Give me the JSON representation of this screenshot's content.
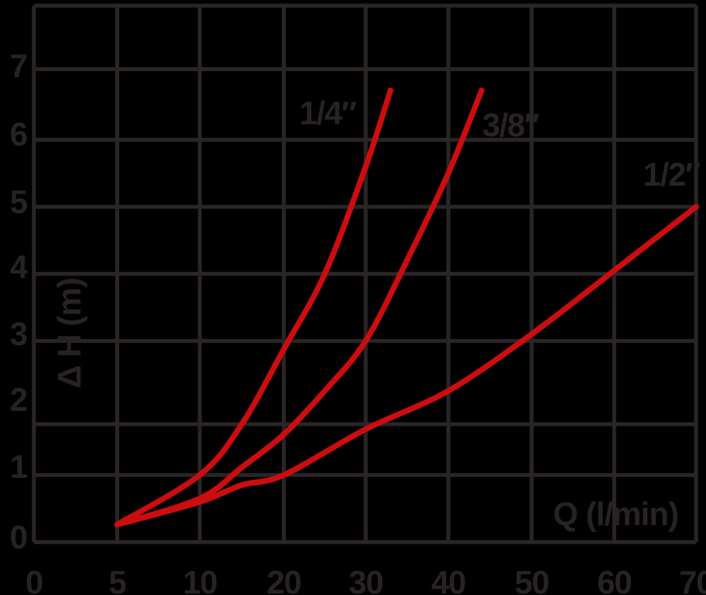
{
  "chart_data": {
    "type": "line",
    "xlabel": "Q (l/min)",
    "ylabel": "Δ H (m)",
    "x_tick_labels": [
      "0",
      "5",
      "10",
      "20",
      "30",
      "40",
      "50",
      "60",
      "70"
    ],
    "x_tick_values": [
      0,
      5,
      10,
      20,
      30,
      40,
      50,
      60,
      70
    ],
    "y_tick_labels": [
      "0",
      "1",
      "2",
      "3",
      "4",
      "5",
      "6",
      "7"
    ],
    "xlim": [
      0,
      70
    ],
    "ylim": [
      0,
      8
    ],
    "grid": true,
    "legend_position": "inline-curve-labels",
    "series": [
      {
        "name": "1/4″",
        "points": [
          [
            5,
            0.26
          ],
          [
            10,
            1.0
          ],
          [
            15,
            2.0
          ],
          [
            20,
            2.9
          ],
          [
            25,
            4.0
          ],
          [
            30,
            5.6
          ],
          [
            33,
            6.7
          ]
        ]
      },
      {
        "name": "3/8″",
        "points": [
          [
            5,
            0.26
          ],
          [
            10,
            0.65
          ],
          [
            15,
            1.15
          ],
          [
            20,
            1.8
          ],
          [
            25,
            2.4
          ],
          [
            30,
            3.0
          ],
          [
            35,
            4.2
          ],
          [
            40,
            5.5
          ],
          [
            44,
            6.7
          ]
        ]
      },
      {
        "name": "1/2″",
        "points": [
          [
            5,
            0.26
          ],
          [
            10,
            0.6
          ],
          [
            15,
            0.85
          ],
          [
            20,
            1.0
          ],
          [
            30,
            1.9
          ],
          [
            40,
            2.4
          ],
          [
            50,
            3.1
          ],
          [
            60,
            4.05
          ],
          [
            70,
            5.0
          ]
        ]
      }
    ],
    "colors": {
      "curve": "#cc0d10",
      "grid": "#2a2526",
      "text": "#272223",
      "background": "#000000"
    }
  }
}
